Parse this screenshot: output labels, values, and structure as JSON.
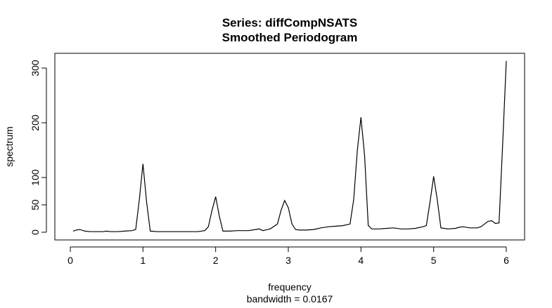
{
  "chart_data": {
    "type": "line",
    "title": "Series: diffCompNSATS",
    "subtitle": "Smoothed Periodogram",
    "xlabel": "frequency",
    "xlabel_sub": "bandwidth = 0.0167",
    "ylabel": "spectrum",
    "xlim": [
      0,
      6
    ],
    "ylim": [
      0,
      310
    ],
    "x_ticks": [
      0,
      1,
      2,
      3,
      4,
      5,
      6
    ],
    "y_ticks": [
      0,
      50,
      100,
      200,
      300
    ],
    "grid": false,
    "series": [
      {
        "x": [
          0.04,
          0.08,
          0.13,
          0.2,
          0.27,
          0.35,
          0.45,
          0.5,
          0.55,
          0.65,
          0.75,
          0.85,
          0.9,
          0.95,
          1.0,
          1.05,
          1.1,
          1.2,
          1.3,
          1.4,
          1.5,
          1.6,
          1.7,
          1.75,
          1.85,
          1.9,
          1.95,
          2.0,
          2.05,
          2.1,
          2.2,
          2.3,
          2.35,
          2.45,
          2.55,
          2.6,
          2.65,
          2.75,
          2.85,
          2.9,
          2.95,
          3.0,
          3.05,
          3.1,
          3.15,
          3.25,
          3.35,
          3.45,
          3.55,
          3.65,
          3.75,
          3.85,
          3.9,
          3.95,
          4.0,
          4.05,
          4.1,
          4.15,
          4.25,
          4.35,
          4.45,
          4.55,
          4.65,
          4.75,
          4.85,
          4.9,
          4.95,
          5.0,
          5.05,
          5.1,
          5.2,
          5.3,
          5.35,
          5.4,
          5.5,
          5.6,
          5.65,
          5.7,
          5.75,
          5.8,
          5.85,
          5.9,
          5.95,
          6.0
        ],
        "y": [
          2,
          4,
          5,
          2,
          1,
          1,
          1,
          2,
          1,
          1,
          2,
          3,
          5,
          60,
          125,
          55,
          2,
          1,
          1,
          1,
          1,
          1,
          1,
          1,
          3,
          10,
          40,
          65,
          30,
          2,
          2,
          3,
          3,
          3,
          5,
          6,
          3,
          6,
          15,
          40,
          58,
          45,
          15,
          5,
          4,
          4,
          5,
          8,
          10,
          11,
          12,
          15,
          60,
          150,
          210,
          140,
          12,
          6,
          6,
          7,
          8,
          6,
          6,
          7,
          10,
          12,
          55,
          102,
          60,
          8,
          6,
          7,
          9,
          10,
          8,
          8,
          10,
          15,
          20,
          21,
          16,
          17,
          160,
          313
        ]
      }
    ]
  }
}
